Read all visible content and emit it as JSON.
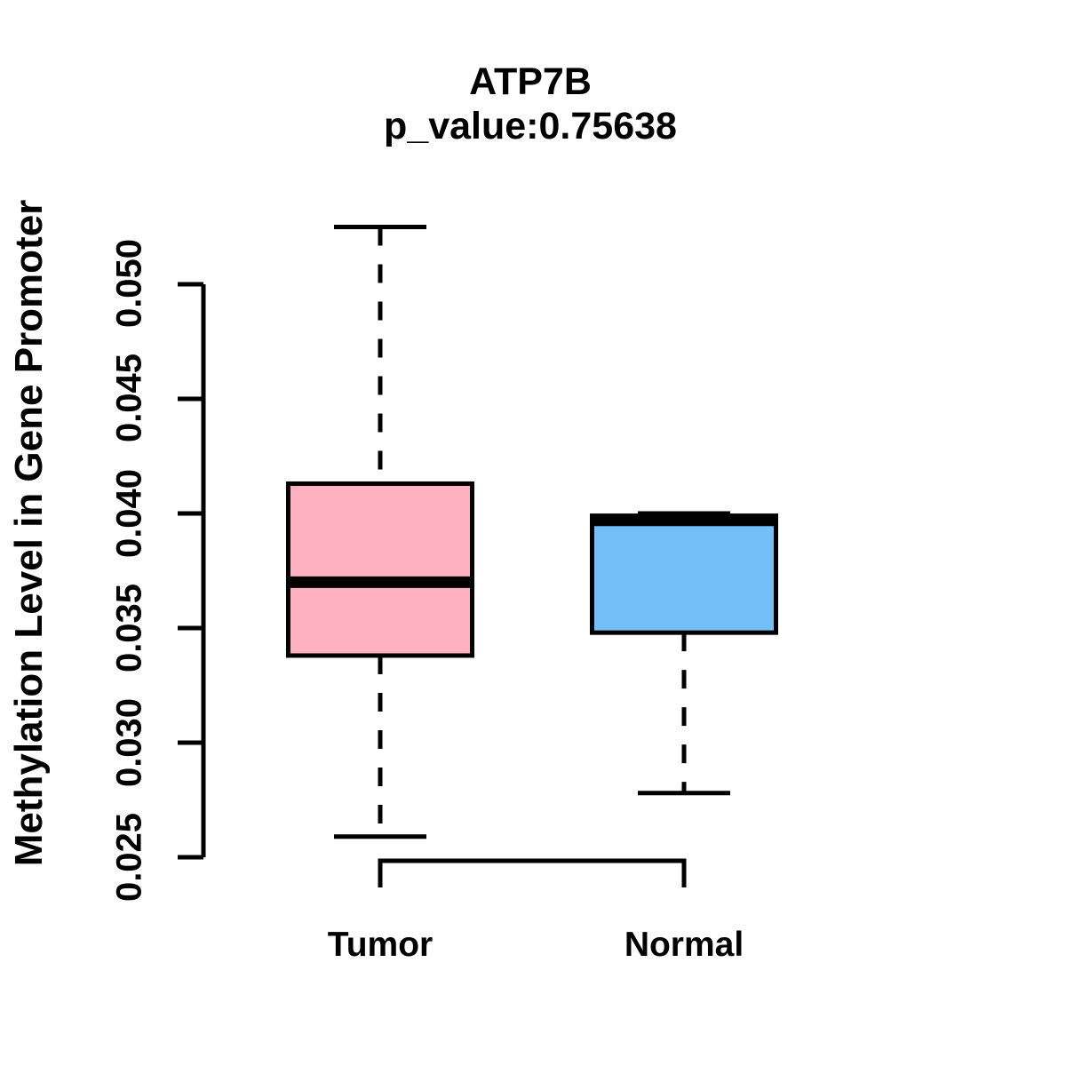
{
  "chart_data": {
    "type": "boxplot",
    "title": "ATP7B",
    "subtitle": "p_value:0.75638",
    "ylabel": "Methylation Level in Gene Promoter",
    "xlabel": "",
    "categories": [
      "Tumor",
      "Normal"
    ],
    "series": [
      {
        "name": "Tumor",
        "color": "#FFB0C1",
        "min": 0.0259,
        "q1": 0.0338,
        "median": 0.037,
        "q3": 0.0413,
        "max": 0.0525
      },
      {
        "name": "Normal",
        "color": "#73BFF7",
        "min": 0.0278,
        "q1": 0.0348,
        "median": 0.0397,
        "q3": 0.0399,
        "max": 0.04
      }
    ],
    "yticks": [
      0.025,
      0.03,
      0.035,
      0.04,
      0.045,
      0.05
    ],
    "ytick_labels": [
      "0.025",
      "0.030",
      "0.035",
      "0.040",
      "0.045",
      "0.050"
    ],
    "ylim": [
      0.025,
      0.0525
    ],
    "grid": false,
    "legend": "none",
    "axis_color": "#000000",
    "background_color": "#ffffff"
  }
}
